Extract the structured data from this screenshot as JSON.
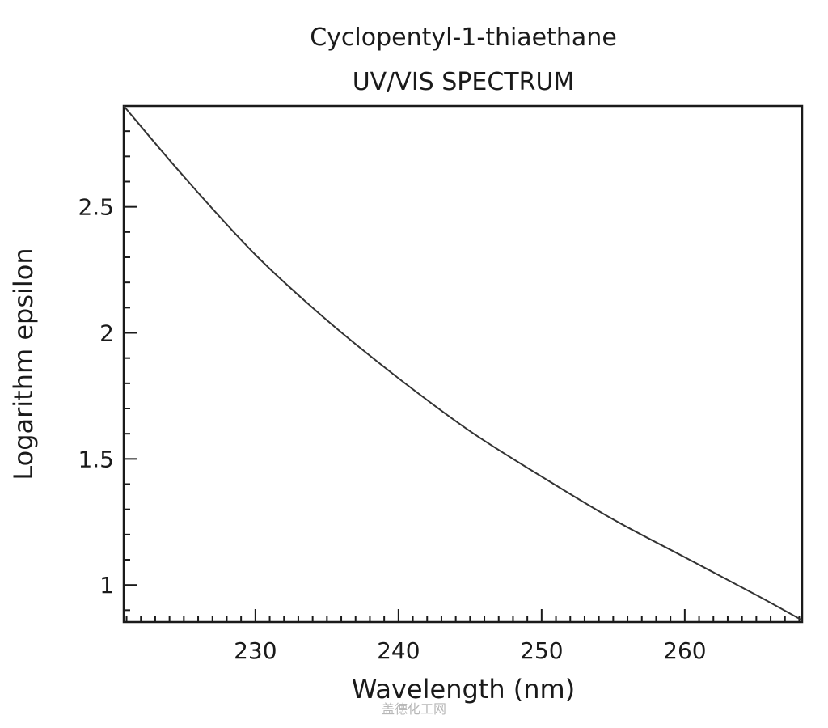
{
  "chart_data": {
    "type": "line",
    "title": "Cyclopentyl-1-thiaethane",
    "subtitle": "UV/VIS SPECTRUM",
    "xlabel": "Wavelength (nm)",
    "ylabel": "Logarithm epsilon",
    "xlim": [
      220.8,
      268.2
    ],
    "ylim": [
      0.853,
      2.9
    ],
    "x_ticks": [
      230,
      240,
      250,
      260
    ],
    "y_ticks": [
      1,
      1.5,
      2,
      2.5
    ],
    "grid": false,
    "series": [
      {
        "color": "#333333",
        "x": [
          220.8,
          225,
          230,
          235,
          240,
          245,
          250,
          255,
          260,
          265,
          268.2
        ],
        "y": [
          2.9,
          2.62,
          2.31,
          2.05,
          1.82,
          1.61,
          1.43,
          1.26,
          1.11,
          0.96,
          0.86
        ]
      }
    ]
  },
  "watermark": "盖德化工网"
}
